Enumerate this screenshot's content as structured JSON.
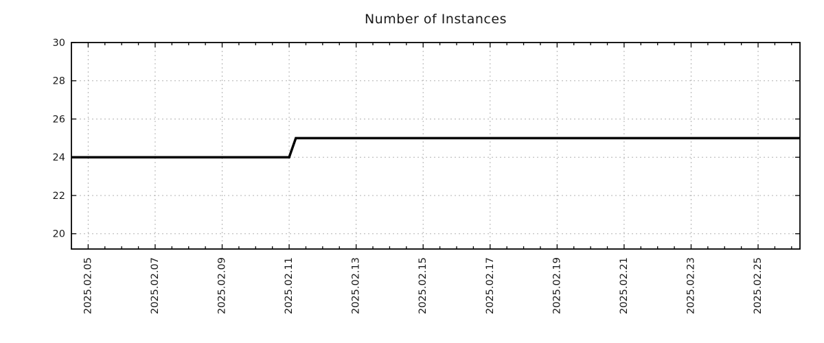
{
  "chart_data": {
    "type": "line",
    "title": "Number of Instances",
    "grid": {
      "show": true,
      "style": "dotted",
      "color": "#b0b0b0"
    },
    "colors": {
      "line": "#000000",
      "frame": "#000000",
      "text": "#1a1a1a"
    },
    "x_axis": {
      "unit": "date",
      "range_days": [
        0,
        21.75
      ],
      "minor_tick_step_days": 0.5,
      "major_ticks": [
        {
          "day": 0.5,
          "label": "2025.02.05"
        },
        {
          "day": 2.5,
          "label": "2025.02.07"
        },
        {
          "day": 4.5,
          "label": "2025.02.09"
        },
        {
          "day": 6.5,
          "label": "2025.02.11"
        },
        {
          "day": 8.5,
          "label": "2025.02.13"
        },
        {
          "day": 10.5,
          "label": "2025.02.15"
        },
        {
          "day": 12.5,
          "label": "2025.02.17"
        },
        {
          "day": 14.5,
          "label": "2025.02.19"
        },
        {
          "day": 16.5,
          "label": "2025.02.21"
        },
        {
          "day": 18.5,
          "label": "2025.02.23"
        },
        {
          "day": 20.5,
          "label": "2025.02.25"
        }
      ]
    },
    "y_axis": {
      "range": [
        19.2,
        30
      ],
      "ticks": [
        20,
        22,
        24,
        26,
        28,
        30
      ]
    },
    "series": [
      {
        "name": "instances",
        "color": "#000000",
        "value_before_step": 24,
        "value_after_step": 25,
        "step_date": "2025.02.11",
        "points": [
          {
            "day": 0,
            "value": 24
          },
          {
            "day": 6.5,
            "value": 24
          },
          {
            "day": 6.7,
            "value": 25
          },
          {
            "day": 21.75,
            "value": 25
          }
        ]
      }
    ]
  }
}
